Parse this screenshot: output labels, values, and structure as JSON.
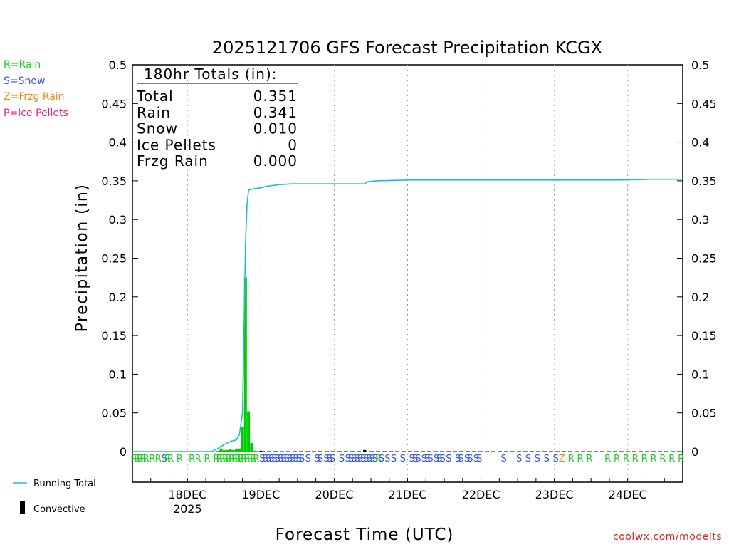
{
  "chart_data": {
    "type": "bar",
    "title": "2025121706 GFS Forecast Precipitation KCGX",
    "xlabel": "Forecast Time (UTC)",
    "ylabel": "Precipitation (in)",
    "ylim": [
      0,
      0.5
    ],
    "yticks": [
      "0",
      "0.05",
      "0.1",
      "0.15",
      "0.2",
      "0.25",
      "0.3",
      "0.35",
      "0.4",
      "0.45",
      "0.5"
    ],
    "x_range_hours": [
      0,
      180
    ],
    "x_ticks": [
      {
        "label": "18DEC",
        "sub": "2025",
        "hour": 18
      },
      {
        "label": "19DEC",
        "sub": "",
        "hour": 42
      },
      {
        "label": "20DEC",
        "sub": "",
        "hour": 66
      },
      {
        "label": "21DEC",
        "sub": "",
        "hour": 90
      },
      {
        "label": "22DEC",
        "sub": "",
        "hour": 114
      },
      {
        "label": "23DEC",
        "sub": "",
        "hour": 138
      },
      {
        "label": "24DEC",
        "sub": "",
        "hour": 162
      }
    ],
    "grid": "vertical dotted",
    "precip_type_legend": [
      {
        "text": "R=Rain",
        "color": "#22cc22"
      },
      {
        "text": "S=Snow",
        "color": "#3355dd"
      },
      {
        "text": "Z=Frzg Rain",
        "color": "#ee8822"
      },
      {
        "text": "P=Ice Pellets",
        "color": "#dd2288"
      }
    ],
    "totals": {
      "heading": "180hr Totals (in):",
      "rows": [
        {
          "label": "Total",
          "value": "0.351"
        },
        {
          "label": "Rain",
          "value": "0.341"
        },
        {
          "label": "Snow",
          "value": "0.010"
        },
        {
          "label": "Ice Pellets",
          "value": "0"
        },
        {
          "label": "Frzg Rain",
          "value": "0.000"
        }
      ]
    },
    "series": [
      {
        "name": "Running Total",
        "kind": "line",
        "color": "#22bbcc",
        "points": [
          [
            0,
            0
          ],
          [
            26,
            0
          ],
          [
            28,
            0.004
          ],
          [
            30,
            0.009
          ],
          [
            32,
            0.013
          ],
          [
            34,
            0.015
          ],
          [
            35,
            0.022
          ],
          [
            36,
            0.05
          ],
          [
            37,
            0.27
          ],
          [
            37.5,
            0.32
          ],
          [
            38,
            0.338
          ],
          [
            40,
            0.34
          ],
          [
            42,
            0.341
          ],
          [
            44,
            0.343
          ],
          [
            48,
            0.345
          ],
          [
            52,
            0.346
          ],
          [
            60,
            0.346
          ],
          [
            70,
            0.346
          ],
          [
            76,
            0.346
          ],
          [
            77,
            0.349
          ],
          [
            80,
            0.35
          ],
          [
            90,
            0.351
          ],
          [
            140,
            0.351
          ],
          [
            160,
            0.351
          ],
          [
            170,
            0.352
          ],
          [
            180,
            0.352
          ]
        ]
      },
      {
        "name": "Precip bars",
        "kind": "bar",
        "color": "#00cc00",
        "points": [
          [
            29,
            0.004
          ],
          [
            30,
            0.002
          ],
          [
            31,
            0.002
          ],
          [
            32,
            0.003
          ],
          [
            33,
            0.002
          ],
          [
            34,
            0.003
          ],
          [
            35,
            0.004
          ],
          [
            36,
            0.032
          ],
          [
            37,
            0.225
          ],
          [
            38,
            0.052
          ],
          [
            39,
            0.011
          ],
          [
            40,
            0.001
          ]
        ]
      },
      {
        "name": "Convective",
        "kind": "bar",
        "color": "#000000",
        "points": [
          [
            42,
            0.001
          ],
          [
            76,
            0.002
          ]
        ]
      }
    ],
    "precip_type_markers": [
      {
        "hour": 0,
        "t": "R"
      },
      {
        "hour": 1,
        "t": "R"
      },
      {
        "hour": 2,
        "t": "R"
      },
      {
        "hour": 3,
        "t": "R"
      },
      {
        "hour": 4,
        "t": "R"
      },
      {
        "hour": 6,
        "t": "R"
      },
      {
        "hour": 8,
        "t": "R"
      },
      {
        "hour": 10,
        "t": "S"
      },
      {
        "hour": 11,
        "t": "R"
      },
      {
        "hour": 12,
        "t": "R"
      },
      {
        "hour": 15,
        "t": "R"
      },
      {
        "hour": 19,
        "t": "R"
      },
      {
        "hour": 21,
        "t": "R"
      },
      {
        "hour": 24,
        "t": "R"
      },
      {
        "hour": 27,
        "t": "R"
      },
      {
        "hour": 28,
        "t": "R"
      },
      {
        "hour": 29,
        "t": "R"
      },
      {
        "hour": 30,
        "t": "R"
      },
      {
        "hour": 31,
        "t": "R"
      },
      {
        "hour": 32,
        "t": "R"
      },
      {
        "hour": 33,
        "t": "R"
      },
      {
        "hour": 34,
        "t": "R"
      },
      {
        "hour": 35,
        "t": "R"
      },
      {
        "hour": 36,
        "t": "R"
      },
      {
        "hour": 37,
        "t": "R"
      },
      {
        "hour": 38,
        "t": "R"
      },
      {
        "hour": 39,
        "t": "R"
      },
      {
        "hour": 40,
        "t": "R"
      },
      {
        "hour": 42,
        "t": "S"
      },
      {
        "hour": 43,
        "t": "S"
      },
      {
        "hour": 44,
        "t": "S"
      },
      {
        "hour": 45,
        "t": "S"
      },
      {
        "hour": 46,
        "t": "S"
      },
      {
        "hour": 47,
        "t": "S"
      },
      {
        "hour": 48,
        "t": "S"
      },
      {
        "hour": 49,
        "t": "S"
      },
      {
        "hour": 50,
        "t": "S"
      },
      {
        "hour": 51,
        "t": "S"
      },
      {
        "hour": 52,
        "t": "S"
      },
      {
        "hour": 53,
        "t": "S"
      },
      {
        "hour": 54,
        "t": "S"
      },
      {
        "hour": 55,
        "t": "S"
      },
      {
        "hour": 57,
        "t": "S"
      },
      {
        "hour": 60,
        "t": "S"
      },
      {
        "hour": 61,
        "t": "S"
      },
      {
        "hour": 63,
        "t": "S"
      },
      {
        "hour": 64,
        "t": "S"
      },
      {
        "hour": 65,
        "t": "S"
      },
      {
        "hour": 68,
        "t": "S"
      },
      {
        "hour": 70,
        "t": "S"
      },
      {
        "hour": 71,
        "t": "S"
      },
      {
        "hour": 72,
        "t": "S"
      },
      {
        "hour": 73,
        "t": "S"
      },
      {
        "hour": 74,
        "t": "S"
      },
      {
        "hour": 75,
        "t": "S"
      },
      {
        "hour": 76,
        "t": "S"
      },
      {
        "hour": 77,
        "t": "S"
      },
      {
        "hour": 78,
        "t": "S"
      },
      {
        "hour": 79,
        "t": "S"
      },
      {
        "hour": 80,
        "t": "R"
      },
      {
        "hour": 81,
        "t": "S"
      },
      {
        "hour": 83,
        "t": "S"
      },
      {
        "hour": 85,
        "t": "S"
      },
      {
        "hour": 88,
        "t": "S"
      },
      {
        "hour": 91,
        "t": "S"
      },
      {
        "hour": 92,
        "t": "S"
      },
      {
        "hour": 93,
        "t": "S"
      },
      {
        "hour": 95,
        "t": "S"
      },
      {
        "hour": 96,
        "t": "S"
      },
      {
        "hour": 97,
        "t": "S"
      },
      {
        "hour": 99,
        "t": "S"
      },
      {
        "hour": 100,
        "t": "S"
      },
      {
        "hour": 101,
        "t": "S"
      },
      {
        "hour": 103,
        "t": "S"
      },
      {
        "hour": 106,
        "t": "S"
      },
      {
        "hour": 107,
        "t": "S"
      },
      {
        "hour": 109,
        "t": "S"
      },
      {
        "hour": 110,
        "t": "S"
      },
      {
        "hour": 112,
        "t": "S"
      },
      {
        "hour": 113,
        "t": "S"
      },
      {
        "hour": 121,
        "t": "S"
      },
      {
        "hour": 126,
        "t": "S"
      },
      {
        "hour": 129,
        "t": "S"
      },
      {
        "hour": 132,
        "t": "S"
      },
      {
        "hour": 135,
        "t": "S"
      },
      {
        "hour": 138,
        "t": "S"
      },
      {
        "hour": 140,
        "t": "Z"
      },
      {
        "hour": 143,
        "t": "R"
      },
      {
        "hour": 146,
        "t": "R"
      },
      {
        "hour": 149,
        "t": "R"
      },
      {
        "hour": 155,
        "t": "R"
      },
      {
        "hour": 158,
        "t": "R"
      },
      {
        "hour": 161,
        "t": "R"
      },
      {
        "hour": 164,
        "t": "R"
      },
      {
        "hour": 167,
        "t": "R"
      },
      {
        "hour": 170,
        "t": "R"
      },
      {
        "hour": 173,
        "t": "R"
      },
      {
        "hour": 176,
        "t": "R"
      },
      {
        "hour": 179,
        "t": "R"
      }
    ],
    "bottom_legend": [
      {
        "text": "Running Total",
        "swatch": "line",
        "color": "#22bbcc"
      },
      {
        "text": "Convective",
        "swatch": "bar",
        "color": "#000000"
      }
    ],
    "credit": "coolwx.com/modelts"
  }
}
